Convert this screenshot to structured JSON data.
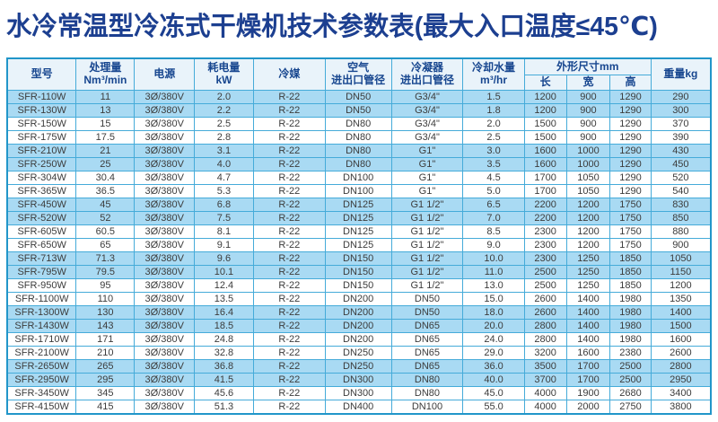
{
  "title": "水冷常温型冷冻式干燥机技术参数表(最大入口温度≤45℃)",
  "colors": {
    "title_text": "#1c3f90",
    "header_bg": "#e9f3fa",
    "header_text": "#17468f",
    "row_blue_bg": "#a9daf3",
    "row_white_bg": "#ffffff",
    "grid_border": "#45abd9",
    "outer_border": "#2196c9"
  },
  "table": {
    "header": {
      "model": {
        "line1": "型号"
      },
      "capacity": {
        "line1": "处理量",
        "line2": "Nm³/min"
      },
      "power": {
        "line1": "电源"
      },
      "consumption": {
        "line1": "耗电量",
        "line2": "kW"
      },
      "refrigerant": {
        "line1": "冷媒"
      },
      "air_pipe": {
        "line1": "空气",
        "line2": "进出口管径"
      },
      "condenser_pipe": {
        "line1": "冷凝器",
        "line2": "进出口管径"
      },
      "cooling_water": {
        "line1": "冷却水量",
        "line2": "m³/hr"
      },
      "dimensions": {
        "label": "外形尺寸mm",
        "sub": [
          "长",
          "宽",
          "高"
        ]
      },
      "weight": {
        "line1": "重量kg"
      }
    },
    "rows": [
      [
        "SFR-110W",
        "11",
        "3Ø/380V",
        "2.0",
        "R-22",
        "DN50",
        "G3/4\"",
        "1.5",
        "1200",
        "900",
        "1290",
        "290"
      ],
      [
        "SFR-130W",
        "13",
        "3Ø/380V",
        "2.2",
        "R-22",
        "DN50",
        "G3/4\"",
        "1.8",
        "1200",
        "900",
        "1290",
        "300"
      ],
      [
        "SFR-150W",
        "15",
        "3Ø/380V",
        "2.5",
        "R-22",
        "DN80",
        "G3/4\"",
        "2.0",
        "1500",
        "900",
        "1290",
        "370"
      ],
      [
        "SFR-175W",
        "17.5",
        "3Ø/380V",
        "2.8",
        "R-22",
        "DN80",
        "G3/4\"",
        "2.5",
        "1500",
        "900",
        "1290",
        "390"
      ],
      [
        "SFR-210W",
        "21",
        "3Ø/380V",
        "3.1",
        "R-22",
        "DN80",
        "G1\"",
        "3.0",
        "1600",
        "1000",
        "1290",
        "430"
      ],
      [
        "SFR-250W",
        "25",
        "3Ø/380V",
        "4.0",
        "R-22",
        "DN80",
        "G1\"",
        "3.5",
        "1600",
        "1000",
        "1290",
        "450"
      ],
      [
        "SFR-304W",
        "30.4",
        "3Ø/380V",
        "4.7",
        "R-22",
        "DN100",
        "G1\"",
        "4.5",
        "1700",
        "1050",
        "1290",
        "520"
      ],
      [
        "SFR-365W",
        "36.5",
        "3Ø/380V",
        "5.3",
        "R-22",
        "DN100",
        "G1\"",
        "5.0",
        "1700",
        "1050",
        "1290",
        "540"
      ],
      [
        "SFR-450W",
        "45",
        "3Ø/380V",
        "6.8",
        "R-22",
        "DN125",
        "G1 1/2\"",
        "6.5",
        "2200",
        "1200",
        "1750",
        "830"
      ],
      [
        "SFR-520W",
        "52",
        "3Ø/380V",
        "7.5",
        "R-22",
        "DN125",
        "G1 1/2\"",
        "7.0",
        "2200",
        "1200",
        "1750",
        "850"
      ],
      [
        "SFR-605W",
        "60.5",
        "3Ø/380V",
        "8.1",
        "R-22",
        "DN125",
        "G1 1/2\"",
        "8.5",
        "2300",
        "1200",
        "1750",
        "880"
      ],
      [
        "SFR-650W",
        "65",
        "3Ø/380V",
        "9.1",
        "R-22",
        "DN125",
        "G1 1/2\"",
        "9.0",
        "2300",
        "1200",
        "1750",
        "900"
      ],
      [
        "SFR-713W",
        "71.3",
        "3Ø/380V",
        "9.6",
        "R-22",
        "DN150",
        "G1 1/2\"",
        "10.0",
        "2300",
        "1250",
        "1850",
        "1050"
      ],
      [
        "SFR-795W",
        "79.5",
        "3Ø/380V",
        "10.1",
        "R-22",
        "DN150",
        "G1 1/2\"",
        "11.0",
        "2500",
        "1250",
        "1850",
        "1150"
      ],
      [
        "SFR-950W",
        "95",
        "3Ø/380V",
        "12.4",
        "R-22",
        "DN150",
        "G1 1/2\"",
        "13.0",
        "2500",
        "1250",
        "1850",
        "1200"
      ],
      [
        "SFR-1100W",
        "110",
        "3Ø/380V",
        "13.5",
        "R-22",
        "DN200",
        "DN50",
        "15.0",
        "2600",
        "1400",
        "1980",
        "1350"
      ],
      [
        "SFR-1300W",
        "130",
        "3Ø/380V",
        "16.4",
        "R-22",
        "DN200",
        "DN50",
        "18.0",
        "2600",
        "1400",
        "1980",
        "1400"
      ],
      [
        "SFR-1430W",
        "143",
        "3Ø/380V",
        "18.5",
        "R-22",
        "DN200",
        "DN65",
        "20.0",
        "2800",
        "1400",
        "1980",
        "1500"
      ],
      [
        "SFR-1710W",
        "171",
        "3Ø/380V",
        "24.8",
        "R-22",
        "DN200",
        "DN65",
        "24.0",
        "2800",
        "1400",
        "1980",
        "1600"
      ],
      [
        "SFR-2100W",
        "210",
        "3Ø/380V",
        "32.8",
        "R-22",
        "DN250",
        "DN65",
        "29.0",
        "3200",
        "1600",
        "2380",
        "2600"
      ],
      [
        "SFR-2650W",
        "265",
        "3Ø/380V",
        "36.8",
        "R-22",
        "DN250",
        "DN65",
        "36.0",
        "3500",
        "1700",
        "2500",
        "2800"
      ],
      [
        "SFR-2950W",
        "295",
        "3Ø/380V",
        "41.5",
        "R-22",
        "DN300",
        "DN80",
        "40.0",
        "3700",
        "1700",
        "2500",
        "2950"
      ],
      [
        "SFR-3450W",
        "345",
        "3Ø/380V",
        "45.6",
        "R-22",
        "DN300",
        "DN80",
        "45.0",
        "4000",
        "1900",
        "2680",
        "3400"
      ],
      [
        "SFR-4150W",
        "415",
        "3Ø/380V",
        "51.3",
        "R-22",
        "DN400",
        "DN100",
        "55.0",
        "4000",
        "2000",
        "2750",
        "3800"
      ]
    ]
  }
}
